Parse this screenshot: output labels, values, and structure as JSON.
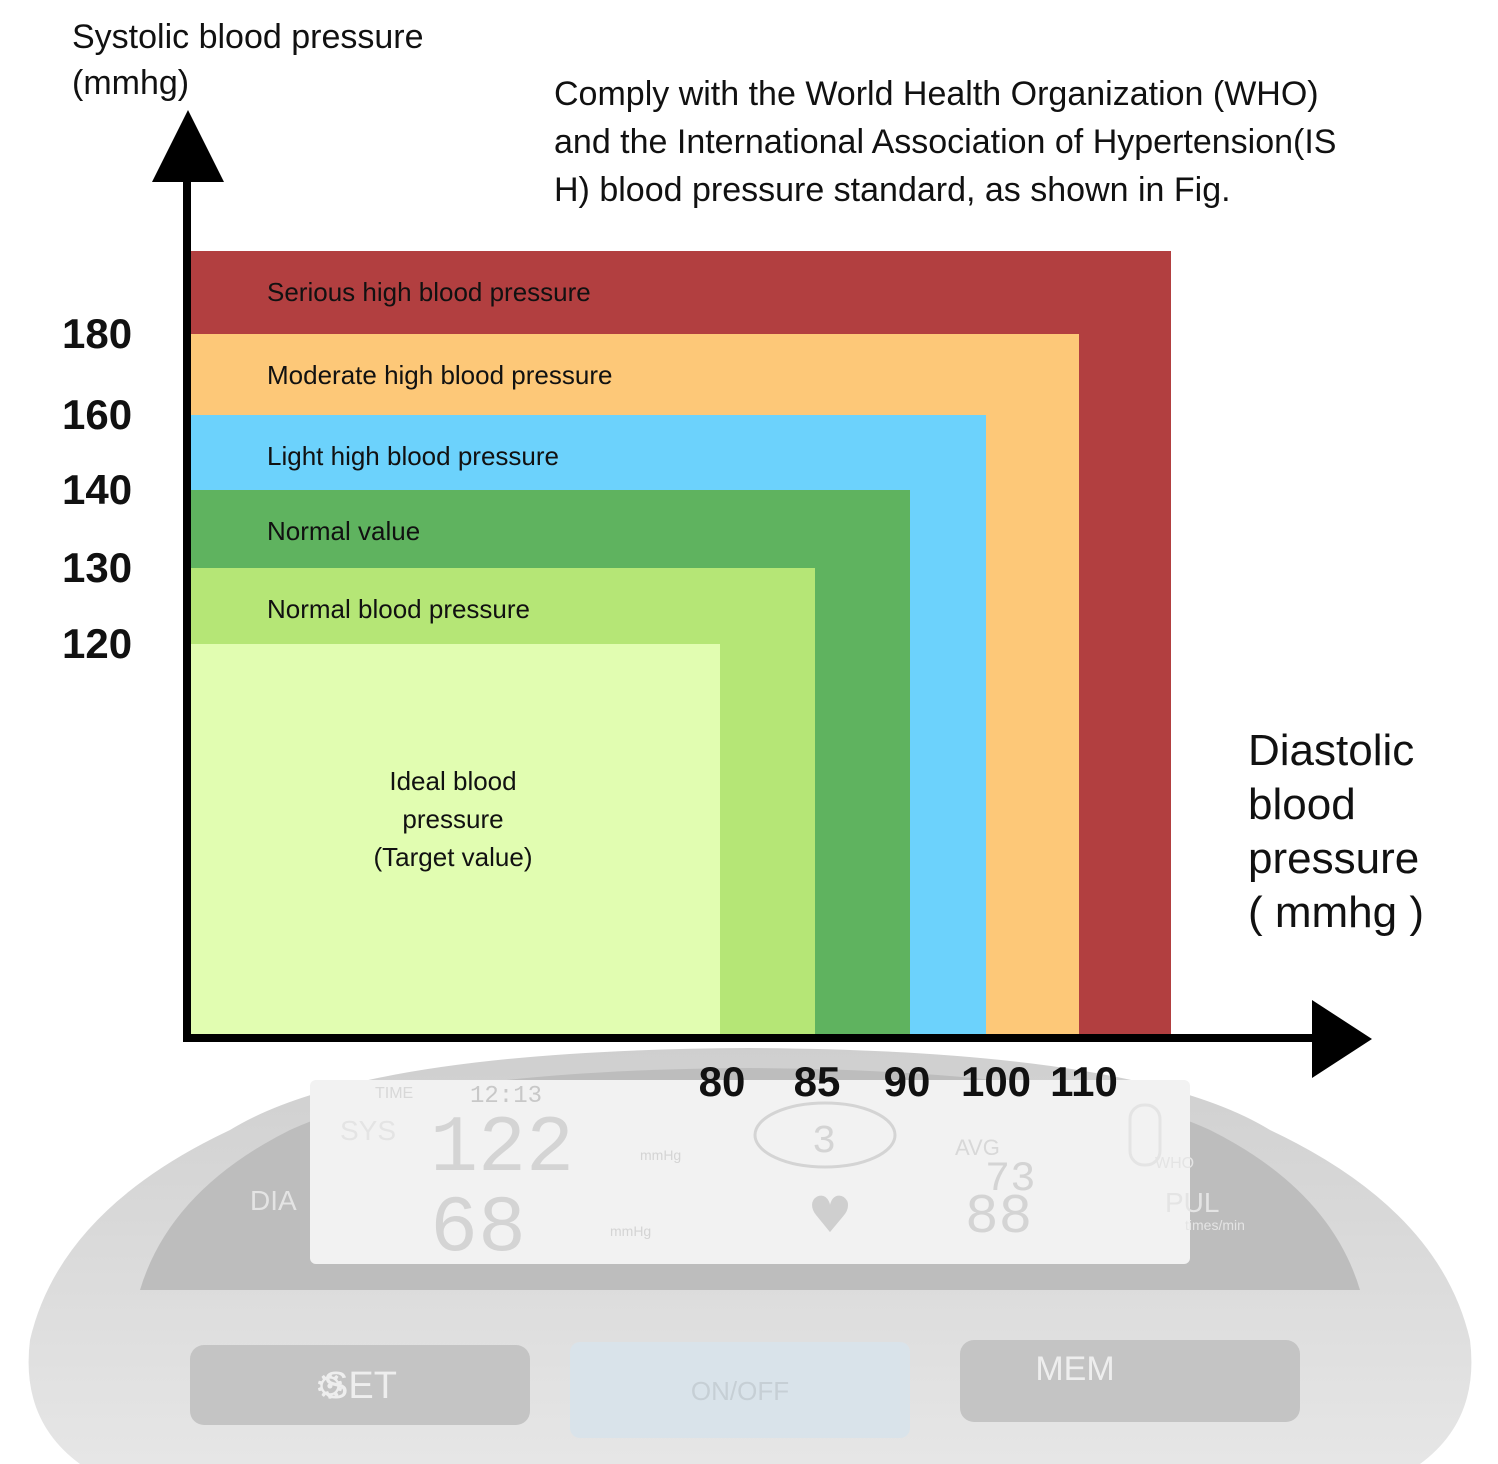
{
  "chart_data": {
    "type": "area",
    "title": "",
    "ylabel": "Systolic blood pressure\n(mmhg)",
    "xlabel": "Diastolic\nblood\npressure\n( mmhg )",
    "note": "Comply with the World Health Organization (WHO) and the International Association of Hypertension(IS H) blood pressure standard, as shown in Fig.",
    "y_ticks": [
      180,
      160,
      140,
      130,
      120
    ],
    "x_ticks": [
      80,
      85,
      90,
      100,
      110
    ],
    "zones": [
      {
        "name": "Serious high blood pressure",
        "color": "#b23f40"
      },
      {
        "name": "Moderate high blood pressure",
        "systolic_max": 180,
        "diastolic_max": 110,
        "color": "#fdc878"
      },
      {
        "name": "Light high blood pressure",
        "systolic_max": 160,
        "diastolic_max": 100,
        "color": "#6cd2fc"
      },
      {
        "name": "Normal value",
        "systolic_max": 140,
        "diastolic_max": 90,
        "color": "#5fb35f"
      },
      {
        "name": "Normal blood pressure",
        "systolic_max": 130,
        "diastolic_max": 85,
        "color": "#b5e676"
      },
      {
        "name": "Ideal blood\npressure\n(Target value)",
        "systolic_max": 120,
        "diastolic_max": 80,
        "color": "#e1fdb1"
      }
    ]
  },
  "device": {
    "lcd_time_label": "TIME",
    "lcd_time": "12:13",
    "lcd_sys_label": "SYS",
    "lcd_dia_label": "DIA",
    "lcd_unit": "mmHg",
    "lcd_sys_value": "122",
    "lcd_dia_value": "68",
    "lcd_avg_label": "AVG",
    "lcd_avg_value": "73",
    "lcd_pulse_value": "88",
    "lcd_memory": "3",
    "lcd_who_label": "WHO",
    "lcd_pul_label": "PUL",
    "lcd_pul_unit": "times/min",
    "button_set": "SET",
    "button_power": "ON/OFF",
    "button_mem": "MEM"
  }
}
